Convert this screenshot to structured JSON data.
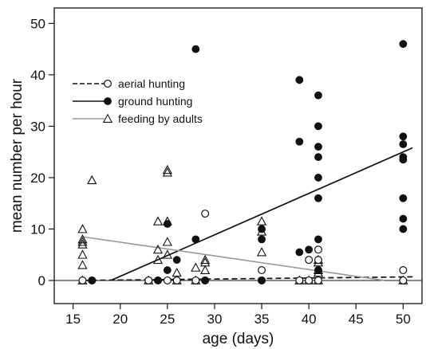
{
  "chart_data": {
    "type": "scatter",
    "xlabel": "age (days)",
    "ylabel": "mean number per hour",
    "xlim": [
      13,
      52
    ],
    "ylim": [
      -4.5,
      53
    ],
    "x_ticks": [
      15,
      20,
      25,
      30,
      35,
      40,
      45,
      50
    ],
    "y_ticks": [
      0,
      10,
      20,
      30,
      40,
      50
    ],
    "grid": false,
    "legend_position": "upper-left",
    "zero_line": true,
    "series": [
      {
        "name": "aerial hunting",
        "marker": "open-circle",
        "line_style": "dashed",
        "color": "#111111",
        "points": [
          [
            16,
            0
          ],
          [
            17,
            0
          ],
          [
            23,
            0
          ],
          [
            24,
            0
          ],
          [
            25,
            0
          ],
          [
            26,
            0
          ],
          [
            28,
            0
          ],
          [
            29,
            13
          ],
          [
            29,
            0
          ],
          [
            35,
            2
          ],
          [
            35,
            0
          ],
          [
            39,
            0
          ],
          [
            40,
            4
          ],
          [
            40,
            0
          ],
          [
            41,
            6
          ],
          [
            41,
            4
          ],
          [
            41,
            2
          ],
          [
            41,
            0
          ],
          [
            50,
            2
          ],
          [
            50,
            0
          ]
        ],
        "trend": [
          [
            16,
            0
          ],
          [
            51,
            0.7
          ]
        ]
      },
      {
        "name": "ground hunting",
        "marker": "filled-circle",
        "line_style": "solid",
        "color": "#111111",
        "points": [
          [
            17,
            0
          ],
          [
            24,
            0
          ],
          [
            25,
            2
          ],
          [
            25,
            11
          ],
          [
            26,
            4
          ],
          [
            28,
            45
          ],
          [
            28,
            8
          ],
          [
            29,
            0
          ],
          [
            35,
            10
          ],
          [
            35,
            8
          ],
          [
            35,
            0
          ],
          [
            39,
            39
          ],
          [
            39,
            27
          ],
          [
            39,
            5.5
          ],
          [
            40,
            6
          ],
          [
            41,
            36
          ],
          [
            41,
            30
          ],
          [
            41,
            26
          ],
          [
            41,
            24
          ],
          [
            41,
            20
          ],
          [
            41,
            16
          ],
          [
            41,
            8
          ],
          [
            41,
            2
          ],
          [
            50,
            46
          ],
          [
            50,
            28
          ],
          [
            50,
            26.5
          ],
          [
            50,
            24
          ],
          [
            50,
            23.5
          ],
          [
            50,
            16
          ],
          [
            50,
            12
          ],
          [
            50,
            10
          ]
        ],
        "trend": [
          [
            19,
            0
          ],
          [
            51,
            25.8
          ]
        ]
      },
      {
        "name": "feeding by adults",
        "marker": "open-triangle",
        "line_style": "solid",
        "color": "#999999",
        "points": [
          [
            16,
            10
          ],
          [
            16,
            8
          ],
          [
            16,
            7.5
          ],
          [
            16,
            7
          ],
          [
            16,
            5
          ],
          [
            16,
            3
          ],
          [
            16,
            0
          ],
          [
            17,
            19.5
          ],
          [
            23,
            0
          ],
          [
            24,
            11.5
          ],
          [
            24,
            6
          ],
          [
            24,
            4
          ],
          [
            25,
            21.5
          ],
          [
            25,
            21
          ],
          [
            25,
            11.5
          ],
          [
            25,
            7.5
          ],
          [
            25,
            5
          ],
          [
            26,
            1.5
          ],
          [
            26,
            0
          ],
          [
            28,
            2.5
          ],
          [
            28,
            0
          ],
          [
            29,
            4
          ],
          [
            29,
            3.5
          ],
          [
            29,
            2
          ],
          [
            35,
            11.5
          ],
          [
            35,
            9.5
          ],
          [
            35,
            5.5
          ],
          [
            39,
            0
          ],
          [
            40,
            0
          ],
          [
            41,
            4
          ],
          [
            41,
            3.5
          ],
          [
            41,
            2
          ],
          [
            41,
            1.5
          ],
          [
            41,
            0
          ],
          [
            50,
            0
          ]
        ],
        "trend": [
          [
            16,
            8.5
          ],
          [
            48,
            0
          ]
        ]
      }
    ]
  }
}
